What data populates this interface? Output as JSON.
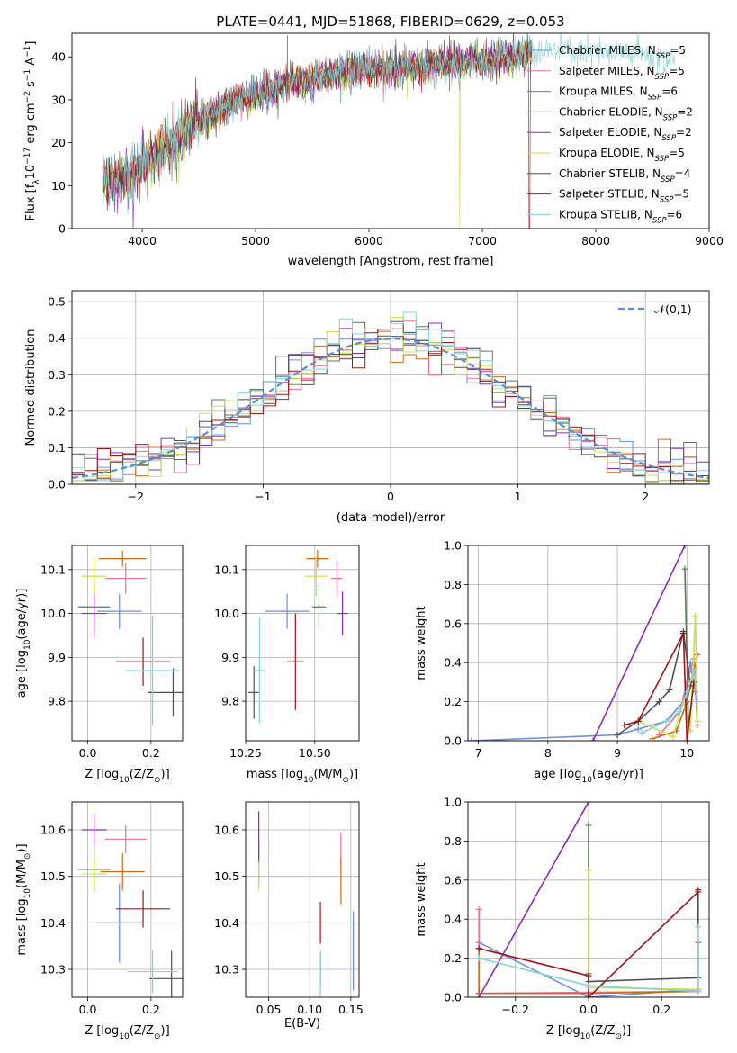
{
  "colors": {
    "series": [
      "#6a8fdc",
      "#e9708f",
      "#c96c1a",
      "#557a55",
      "#8a2db5",
      "#c9e04a",
      "#505050",
      "#a3131c",
      "#86d3d8"
    ],
    "grid": "#b0b0b0",
    "normal_curve": "#5b8dd6"
  },
  "legend": {
    "series_labels": [
      "Chabrier MILES, N",
      "Salpeter MILES, N",
      "Kroupa MILES, N",
      "Chabrier ELODIE, N",
      "Salpeter ELODIE, N",
      "Kroupa ELODIE, N",
      "Chabrier STELIB, N",
      "Salpeter STELIB, N",
      "Kroupa STELIB, N"
    ],
    "subscript": "SSP",
    "nssp": [
      "=5",
      "=5",
      "=6",
      "=2",
      "=2",
      "=5",
      "=4",
      "=5",
      "=6"
    ]
  },
  "chart_data": [
    {
      "id": "spectrum",
      "type": "line",
      "title": "PLATE=0441, MJD=51868, FIBERID=0629, z=0.053",
      "xlabel": "wavelength [Angstrom, rest frame]",
      "ylabel": "Flux [f",
      "ylabel_parts": [
        "λ",
        "10",
        "−17",
        " erg cm",
        "−2",
        " s",
        "−1",
        " A",
        "−1",
        "]"
      ],
      "xlim": [
        3380,
        9000
      ],
      "ylim": [
        0,
        45.5
      ],
      "xticks": [
        4000,
        5000,
        6000,
        7000,
        8000,
        9000
      ],
      "yticks": [
        0,
        10,
        20,
        30,
        40
      ],
      "continuum": [
        [
          3650,
          12
        ],
        [
          3750,
          11
        ],
        [
          3900,
          12.5
        ],
        [
          4000,
          15
        ],
        [
          4100,
          17
        ],
        [
          4200,
          19.5
        ],
        [
          4300,
          20
        ],
        [
          4400,
          23
        ],
        [
          4500,
          25
        ],
        [
          4700,
          28
        ],
        [
          4900,
          30.5
        ],
        [
          5100,
          32
        ],
        [
          5300,
          34
        ],
        [
          5500,
          35
        ],
        [
          5700,
          36
        ],
        [
          5900,
          37
        ],
        [
          6100,
          37.5
        ],
        [
          6300,
          37
        ],
        [
          6500,
          38
        ],
        [
          6700,
          38.5
        ],
        [
          6900,
          39
        ],
        [
          7100,
          39.5
        ],
        [
          7300,
          40
        ],
        [
          7500,
          41
        ],
        [
          7700,
          41.5
        ],
        [
          7900,
          41
        ],
        [
          8100,
          40.5
        ],
        [
          8300,
          41
        ],
        [
          8500,
          40
        ],
        [
          8700,
          39
        ]
      ],
      "noise": 2.5,
      "series_extent_max": [
        7440,
        7440,
        7440,
        7440,
        7440,
        7440,
        7440,
        7440,
        8700
      ],
      "dips": [
        {
          "x": 3920,
          "series": 4
        },
        {
          "x": 6800,
          "series": 5
        },
        {
          "x": 7415,
          "series": 7
        }
      ],
      "spikes": [
        {
          "x": 5280,
          "y": 45
        },
        {
          "x": 6710,
          "y": 45
        }
      ]
    },
    {
      "id": "residual-hist",
      "type": "histogram",
      "xlabel": "(data-model)/error",
      "ylabel": "Normed distribution",
      "xlim": [
        -2.5,
        2.5
      ],
      "ylim": [
        0,
        0.53
      ],
      "xticks": [
        -2,
        -1,
        0,
        1,
        2
      ],
      "yticks": [
        0.0,
        0.1,
        0.2,
        0.3,
        0.4,
        0.5
      ],
      "bin_width": 0.1,
      "legend_label": "𝒩(0,1)",
      "grid": true
    },
    {
      "id": "age-vs-z",
      "type": "errorbar",
      "xlabel": "Z [log",
      "xlabel_parts": [
        "10",
        "(Z/Z",
        "⊙",
        ")]"
      ],
      "ylabel": "age  [log",
      "ylabel_parts": [
        "10",
        "(age/yr)]"
      ],
      "xlim": [
        -0.05,
        0.3
      ],
      "ylim": [
        9.71,
        10.155
      ],
      "xticks": [
        0.0,
        0.2
      ],
      "yticks": [
        9.8,
        9.9,
        10.0,
        10.1
      ],
      "points": [
        {
          "x": 0.1,
          "y": 10.005,
          "xerr": 0.07,
          "yerr": 0.04
        },
        {
          "x": 0.12,
          "y": 10.08,
          "xerr": 0.065,
          "yerr": 0.035
        },
        {
          "x": 0.11,
          "y": 10.125,
          "xerr": 0.075,
          "yerr": 0.018
        },
        {
          "x": 0.02,
          "y": 10.015,
          "xerr": 0.05,
          "yerr": 0.06
        },
        {
          "x": 0.02,
          "y": 10.0,
          "xerr": 0.04,
          "yerr": 0.055
        },
        {
          "x": 0.02,
          "y": 10.085,
          "xerr": 0.04,
          "yerr": 0.04
        },
        {
          "x": 0.27,
          "y": 9.82,
          "xerr": 0.08,
          "yerr": 0.055
        },
        {
          "x": 0.175,
          "y": 9.89,
          "xerr": 0.085,
          "yerr": 0.055
        },
        {
          "x": 0.205,
          "y": 9.87,
          "xerr": 0.085,
          "yerr": 0.125
        }
      ]
    },
    {
      "id": "age-vs-mass",
      "type": "errorbar",
      "xlabel": "mass [log",
      "xlabel_parts": [
        "10",
        "(M/M",
        "⊙",
        ")]"
      ],
      "xlim": [
        10.25,
        10.66
      ],
      "ylim": [
        9.71,
        10.155
      ],
      "xticks": [
        10.25,
        10.5
      ],
      "xtick_labels": [
        "10.25",
        "10.50"
      ],
      "yticks": [
        9.8,
        9.9,
        10.0,
        10.1
      ],
      "points": [
        {
          "x": 10.4,
          "y": 10.005,
          "xerr": 0.08,
          "yerr": 0.04
        },
        {
          "x": 10.58,
          "y": 10.08,
          "xerr": 0.02,
          "yerr": 0.04
        },
        {
          "x": 10.51,
          "y": 10.125,
          "xerr": 0.04,
          "yerr": 0.02
        },
        {
          "x": 10.515,
          "y": 10.015,
          "xerr": 0.025,
          "yerr": 0.05
        },
        {
          "x": 10.6,
          "y": 10.0,
          "xerr": 0.02,
          "yerr": 0.05
        },
        {
          "x": 10.505,
          "y": 10.085,
          "xerr": 0.04,
          "yerr": 0.045
        },
        {
          "x": 10.28,
          "y": 9.82,
          "xerr": 0.02,
          "yerr": 0.06
        },
        {
          "x": 10.43,
          "y": 9.89,
          "xerr": 0.03,
          "yerr": 0.11
        },
        {
          "x": 10.3,
          "y": 9.87,
          "xerr": 0.02,
          "yerr": 0.12
        }
      ]
    },
    {
      "id": "mass-weight-vs-age",
      "type": "line",
      "xlabel": "age  [log",
      "xlabel_parts": [
        "10",
        "(age/yr)]"
      ],
      "ylabel": "mass weight",
      "xlim": [
        6.85,
        10.32
      ],
      "ylim": [
        0,
        1
      ],
      "xticks": [
        7,
        8,
        9,
        10
      ],
      "yticks": [
        0.0,
        0.2,
        0.4,
        0.6,
        0.8,
        1.0
      ],
      "grid": true,
      "series": [
        {
          "x": [
            6.9,
            9.0,
            9.3,
            9.7,
            9.95,
            10.05,
            10.12
          ],
          "y": [
            0.0,
            0.03,
            0.06,
            0.1,
            0.2,
            0.4,
            0.25
          ]
        },
        {
          "x": [
            9.6,
            9.9,
            10.0,
            10.1,
            10.15
          ],
          "y": [
            0.03,
            0.15,
            0.3,
            0.42,
            0.08
          ]
        },
        {
          "x": [
            9.5,
            9.85,
            10.0,
            10.1,
            10.15
          ],
          "y": [
            0.01,
            0.05,
            0.2,
            0.35,
            0.44
          ]
        },
        {
          "x": [
            9.97,
            10.02
          ],
          "y": [
            0.88,
            0.12
          ]
        },
        {
          "x": [
            8.65,
            9.97
          ],
          "y": [
            0.0,
            1.0
          ]
        },
        {
          "x": [
            9.3,
            9.8,
            9.95,
            10.05,
            10.12,
            10.15
          ],
          "y": [
            0.1,
            0.02,
            0.2,
            0.05,
            0.64,
            0.1
          ]
        },
        {
          "x": [
            9.0,
            9.3,
            9.6,
            9.75,
            9.95,
            10.05
          ],
          "y": [
            0.03,
            0.1,
            0.2,
            0.26,
            0.56,
            0.28
          ]
        },
        {
          "x": [
            9.1,
            9.3,
            9.95,
            10.0,
            10.1
          ],
          "y": [
            0.08,
            0.1,
            0.55,
            0.0,
            0.3
          ]
        },
        {
          "x": [
            9.35,
            9.7,
            9.9,
            10.0,
            10.1,
            10.15
          ],
          "y": [
            0.04,
            0.1,
            0.15,
            0.25,
            0.36,
            0.2
          ]
        }
      ]
    },
    {
      "id": "mass-vs-z",
      "type": "errorbar",
      "xlabel": "Z [log",
      "xlabel_parts": [
        "10",
        "(Z/Z",
        "⊙",
        ")]"
      ],
      "ylabel": "mass [log",
      "ylabel_parts": [
        "10",
        "(M/M",
        "⊙",
        ")]"
      ],
      "xlim": [
        -0.05,
        0.3
      ],
      "ylim": [
        10.24,
        10.66
      ],
      "xticks": [
        0.0,
        0.2
      ],
      "yticks": [
        10.3,
        10.4,
        10.5,
        10.6
      ],
      "points": [
        {
          "x": 0.1,
          "y": 10.4,
          "xerr": 0.075,
          "yerr": 0.085
        },
        {
          "x": 0.12,
          "y": 10.58,
          "xerr": 0.065,
          "yerr": 0.03
        },
        {
          "x": 0.11,
          "y": 10.51,
          "xerr": 0.07,
          "yerr": 0.04
        },
        {
          "x": 0.02,
          "y": 10.515,
          "xerr": 0.05,
          "yerr": 0.05
        },
        {
          "x": 0.02,
          "y": 10.6,
          "xerr": 0.04,
          "yerr": 0.035
        },
        {
          "x": 0.02,
          "y": 10.505,
          "xerr": 0.04,
          "yerr": 0.03
        },
        {
          "x": 0.265,
          "y": 10.28,
          "xerr": 0.07,
          "yerr": 0.06
        },
        {
          "x": 0.175,
          "y": 10.43,
          "xerr": 0.085,
          "yerr": 0.04
        },
        {
          "x": 0.205,
          "y": 10.295,
          "xerr": 0.08,
          "yerr": 0.045
        }
      ]
    },
    {
      "id": "mass-vs-ebv",
      "type": "errorbar",
      "xlabel": "E(B-V)",
      "xlim": [
        0.022,
        0.16
      ],
      "ylim": [
        10.24,
        10.66
      ],
      "xticks": [
        0.05,
        0.1,
        0.15
      ],
      "xtick_labels": [
        "0.05",
        "0.10",
        "0.15"
      ],
      "yticks": [
        10.3,
        10.4,
        10.5,
        10.6
      ],
      "points": [
        {
          "x": 0.153,
          "y": 10.34,
          "xerr": 0,
          "yerr": 0.085
        },
        {
          "x": 0.138,
          "y": 10.56,
          "xerr": 0,
          "yerr": 0.035
        },
        {
          "x": 0.138,
          "y": 10.49,
          "xerr": 0,
          "yerr": 0.05
        },
        {
          "x": 0.038,
          "y": 10.53,
          "xerr": 0,
          "yerr": 0.045
        },
        {
          "x": 0.038,
          "y": 10.59,
          "xerr": 0,
          "yerr": 0.05
        },
        {
          "x": 0.038,
          "y": 10.5,
          "xerr": 0,
          "yerr": 0.03
        },
        {
          "x": 0.113,
          "y": 10.3,
          "xerr": 0,
          "yerr": 0.035
        },
        {
          "x": 0.113,
          "y": 10.4,
          "xerr": 0,
          "yerr": 0.045
        },
        {
          "x": 0.113,
          "y": 10.29,
          "xerr": 0,
          "yerr": 0.05
        }
      ]
    },
    {
      "id": "mass-weight-vs-z",
      "type": "line",
      "xlabel": "Z [log",
      "xlabel_parts": [
        "10",
        "(Z/Z",
        "⊙",
        ")]"
      ],
      "ylabel": "mass weight",
      "xlim": [
        -0.33,
        0.33
      ],
      "ylim": [
        0,
        1
      ],
      "xticks": [
        -0.2,
        0.0,
        0.2
      ],
      "xtick_labels": [
        "−0.2",
        "0.0",
        "0.2"
      ],
      "yticks": [
        0.0,
        0.2,
        0.4,
        0.6,
        0.8,
        1.0
      ],
      "grid": true,
      "series": [
        {
          "x": [
            -0.3,
            0.0,
            0.3
          ],
          "y": [
            0.28,
            0.0,
            0.04
          ]
        },
        {
          "x": [
            -0.3,
            -0.3,
            0.3
          ],
          "y": [
            0.45,
            0.02,
            0.03
          ]
        },
        {
          "x": [
            -0.3,
            -0.3,
            0.0,
            0.3,
            0.3
          ],
          "y": [
            0.25,
            0.02,
            0.02,
            0.03,
            0.28
          ]
        },
        {
          "x": [
            0.0,
            0.0
          ],
          "y": [
            0.88,
            0.12
          ]
        },
        {
          "x": [
            -0.3,
            0.0
          ],
          "y": [
            0.0,
            1.0
          ]
        },
        {
          "x": [
            0.0,
            0.0,
            0.3,
            0.3
          ],
          "y": [
            0.65,
            0.05,
            0.04,
            0.1
          ]
        },
        {
          "x": [
            0.0,
            0.3,
            0.3
          ],
          "y": [
            0.08,
            0.1,
            0.55
          ]
        },
        {
          "x": [
            -0.3,
            0.0,
            0.0,
            0.3
          ],
          "y": [
            0.25,
            0.11,
            0.0,
            0.54
          ]
        },
        {
          "x": [
            -0.3,
            0.0,
            0.3,
            0.3
          ],
          "y": [
            0.2,
            0.06,
            0.03,
            0.36
          ]
        }
      ]
    }
  ]
}
